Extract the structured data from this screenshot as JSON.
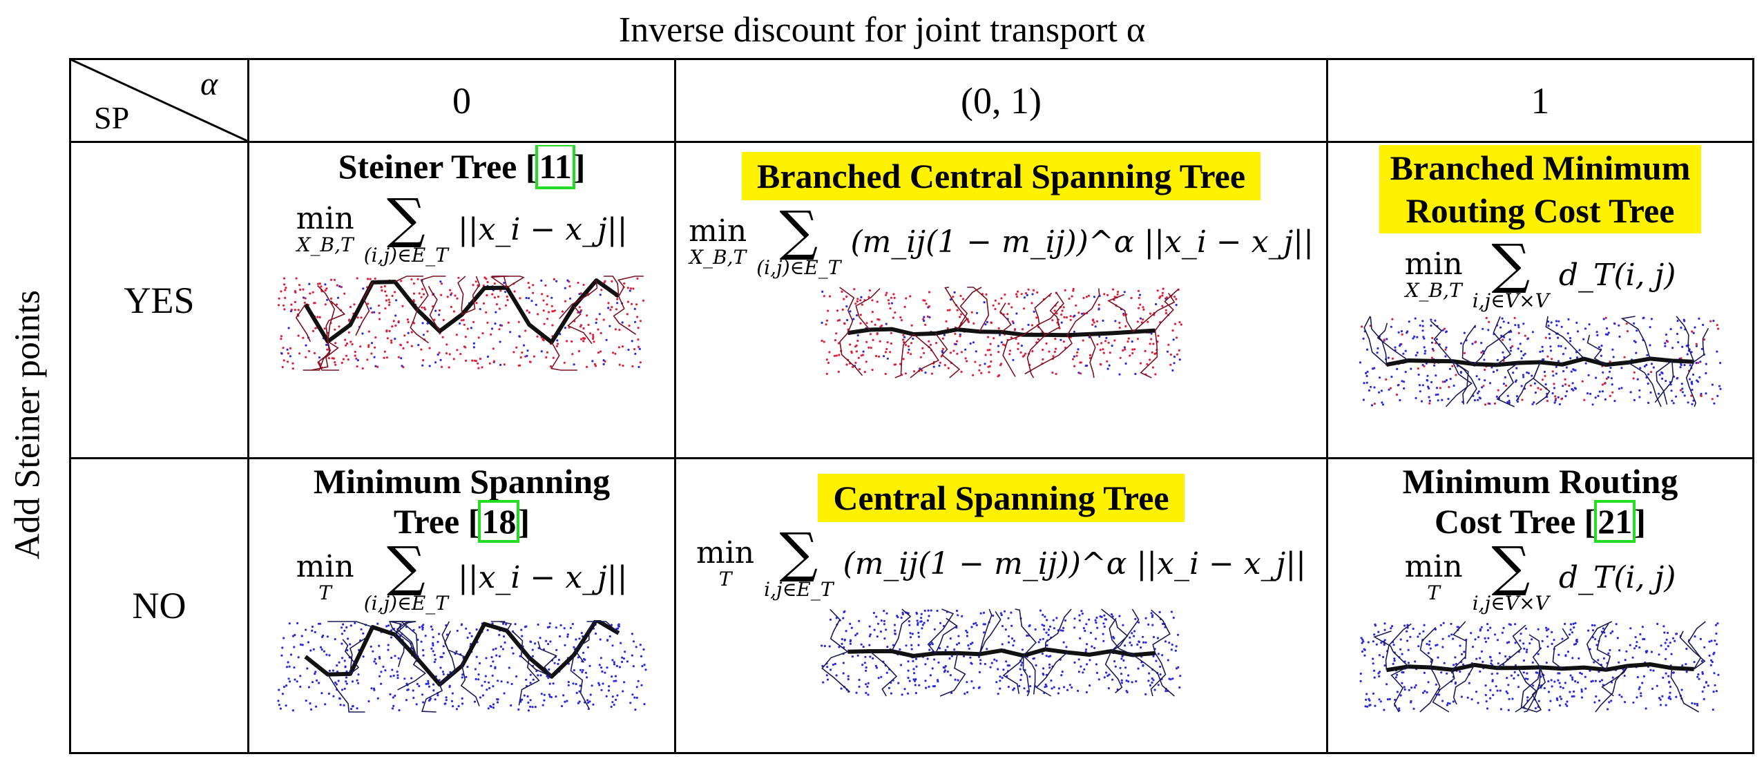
{
  "top_title": "Inverse discount for joint transport α",
  "side_title": "Add Steiner points",
  "corner": {
    "top": "α",
    "bottom": "SP"
  },
  "columns": [
    "0",
    "(0, 1)",
    "1"
  ],
  "rows": [
    "YES",
    "NO"
  ],
  "cells": {
    "r1c1": {
      "title": "Steiner Tree [",
      "ref": "11",
      "close": "]",
      "op": "min",
      "op_sub": "X_B,T",
      "sum_sub": "(i,j)∈E_T",
      "expr": "||x_i − x_j||"
    },
    "r1c2": {
      "title": "Branched Central  Spanning Tree",
      "op": "min",
      "op_sub": "X_B,T",
      "sum_sub": "(i,j)∈E_T",
      "expr": "(m_ij(1 − m_ij))^α ||x_i − x_j||"
    },
    "r1c3": {
      "title_line1": "Branched Minimum",
      "title_line2": "Routing Cost Tree",
      "op": "min",
      "op_sub": "X_B,T",
      "sum_sub": "i,j∈V×V",
      "expr": "d_T(i, j)"
    },
    "r2c1": {
      "title_line1": "Minimum Spanning",
      "title_line2": "Tree [",
      "ref": "18",
      "close": "]",
      "op": "min",
      "op_sub": "T",
      "sum_sub": "(i,j)∈E_T",
      "expr": "||x_i − x_j||"
    },
    "r2c2": {
      "title": "Central Spanning Tree",
      "op": "min",
      "op_sub": "T",
      "sum_sub": "i,j∈E_T",
      "expr": "(m_ij(1 − m_ij))^α ||x_i − x_j||"
    },
    "r2c3": {
      "title_line1": "Minimum Routing",
      "title_line2": "Cost Tree [",
      "ref": "21",
      "close": "]",
      "op": "min",
      "op_sub": "T",
      "sum_sub": "i,j∈V×V",
      "expr": "d_T(i, j)"
    }
  },
  "colors": {
    "highlight": "#fff200",
    "ref_box": "#22dd22",
    "points_red": "#e0203a",
    "points_blue": "#2a2ae0",
    "tree": "#111111"
  },
  "plots": [
    {
      "cell": "r1c1",
      "kind": "steiner-tree",
      "points": "red-blue"
    },
    {
      "cell": "r1c2",
      "kind": "branched-central-spanning-tree",
      "points": "red-blue"
    },
    {
      "cell": "r1c3",
      "kind": "branched-minimum-routing-cost-tree",
      "points": "blue-red"
    },
    {
      "cell": "r2c1",
      "kind": "minimum-spanning-tree",
      "points": "blue"
    },
    {
      "cell": "r2c2",
      "kind": "central-spanning-tree",
      "points": "blue"
    },
    {
      "cell": "r2c3",
      "kind": "minimum-routing-cost-tree",
      "points": "blue"
    }
  ]
}
